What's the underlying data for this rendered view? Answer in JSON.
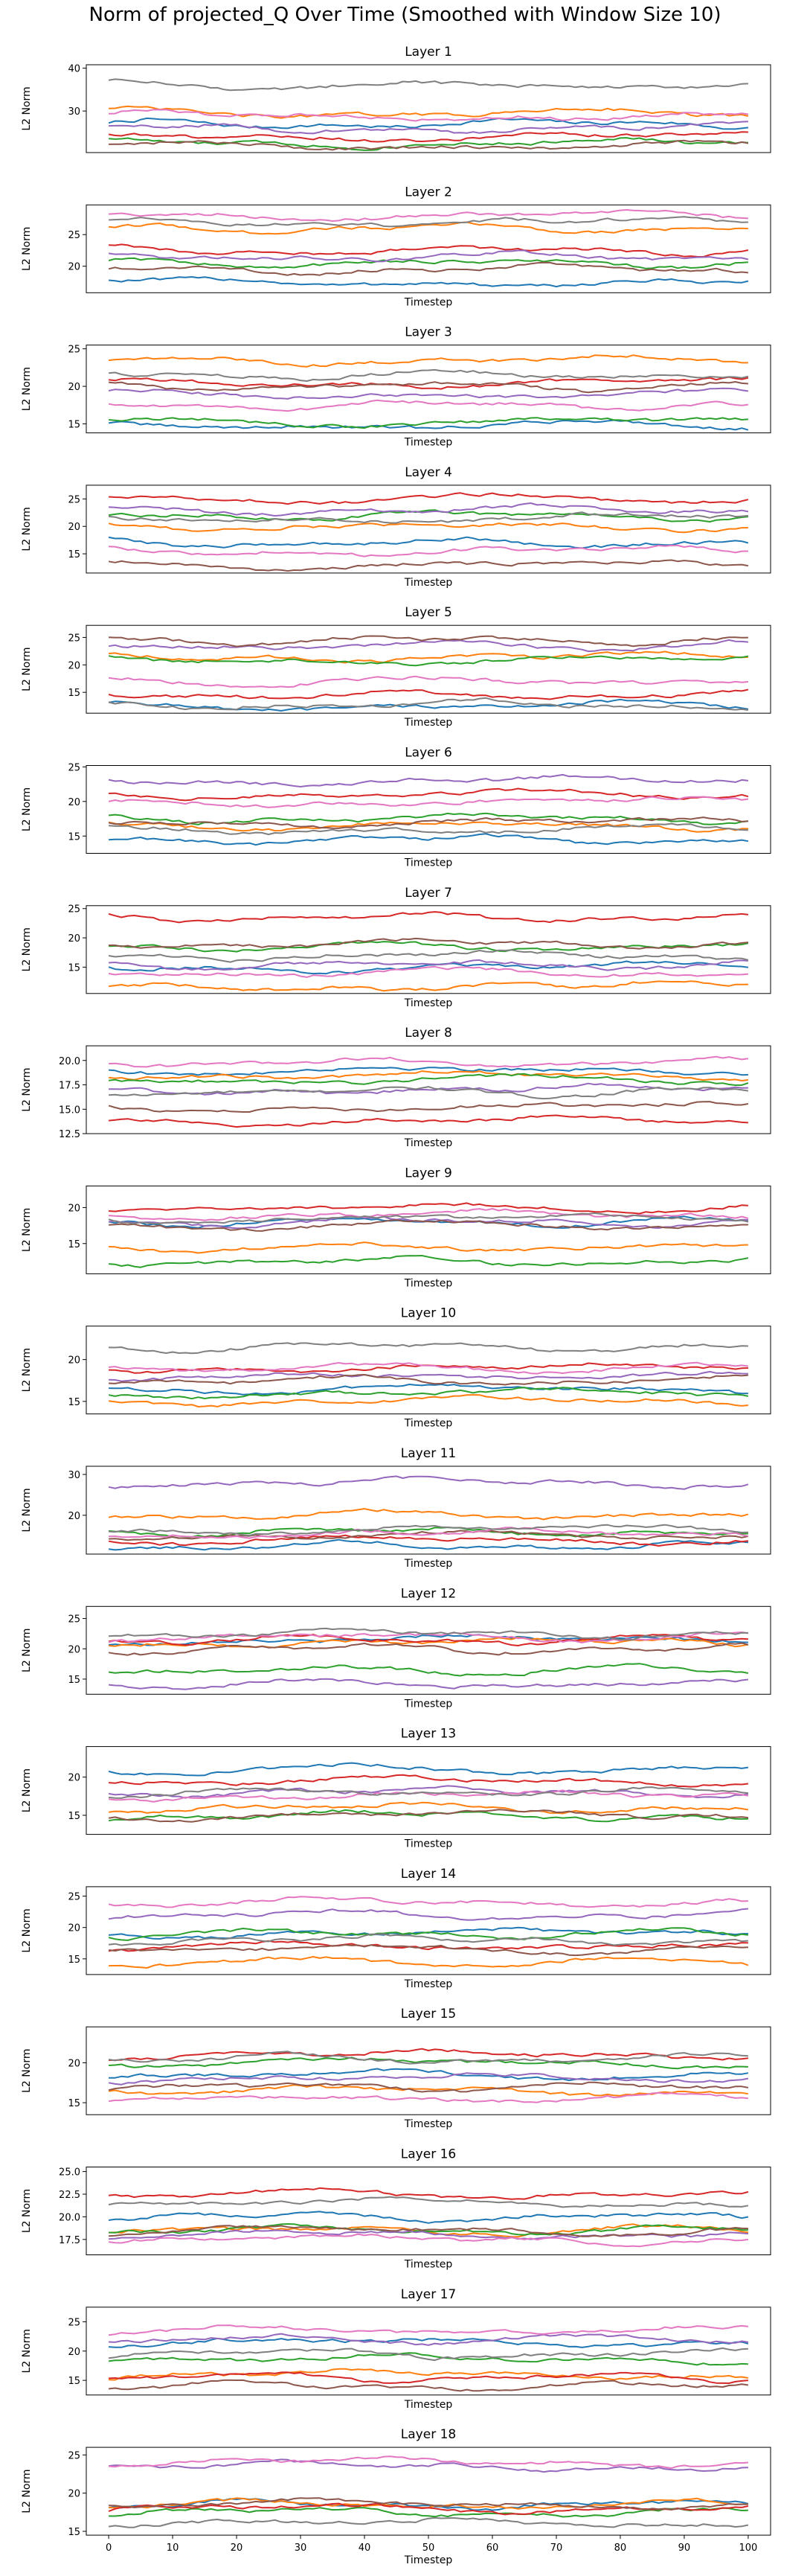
{
  "figure": {
    "title": "Norm of projected_Q Over Time (Smoothed with Window Size 10)"
  },
  "colors": [
    "#1f77b4",
    "#ff7f0e",
    "#2ca02c",
    "#d62728",
    "#9467bd",
    "#8c564b",
    "#e377c2",
    "#7f7f7f"
  ],
  "chart_data": [
    {
      "type": "line",
      "title": "Layer 1",
      "xlabel": "",
      "ylabel": "L2 Norm",
      "xlim": [
        -3.5,
        103.5
      ],
      "ylim": [
        20.3,
        40.8
      ],
      "yticks": [
        30,
        40
      ],
      "xticks": [],
      "series": [
        {
          "base": 27
        },
        {
          "base": 29.5
        },
        {
          "base": 22.5
        },
        {
          "base": 24
        },
        {
          "base": 26
        },
        {
          "base": 22
        },
        {
          "base": 29
        },
        {
          "base": 36
        }
      ]
    },
    {
      "type": "line",
      "title": "Layer 2",
      "xlabel": "Timestep",
      "ylabel": "L2 Norm",
      "xlim": [
        -3.5,
        103.5
      ],
      "ylim": [
        15.8,
        29.7
      ],
      "yticks": [
        20,
        25
      ],
      "xticks": [],
      "series": [
        {
          "base": 17.5
        },
        {
          "base": 26
        },
        {
          "base": 20.5
        },
        {
          "base": 22.5
        },
        {
          "base": 21.5
        },
        {
          "base": 19.5
        },
        {
          "base": 28
        },
        {
          "base": 27
        }
      ]
    },
    {
      "type": "line",
      "title": "Layer 3",
      "xlabel": "Timestep",
      "ylabel": "L2 Norm",
      "xlim": [
        -3.5,
        103.5
      ],
      "ylim": [
        13.8,
        25.5
      ],
      "yticks": [
        15,
        20,
        25
      ],
      "xticks": [],
      "series": [
        {
          "base": 14.8
        },
        {
          "base": 23.5
        },
        {
          "base": 15.3
        },
        {
          "base": 20.5
        },
        {
          "base": 19
        },
        {
          "base": 20
        },
        {
          "base": 17.5
        },
        {
          "base": 21.5
        }
      ]
    },
    {
      "type": "line",
      "title": "Layer 4",
      "xlabel": "Timestep",
      "ylabel": "L2 Norm",
      "xlim": [
        -3.5,
        103.5
      ],
      "ylim": [
        11.5,
        27.5
      ],
      "yticks": [
        15,
        20,
        25
      ],
      "xticks": [],
      "series": [
        {
          "base": 17
        },
        {
          "base": 20
        },
        {
          "base": 22
        },
        {
          "base": 25
        },
        {
          "base": 23
        },
        {
          "base": 13
        },
        {
          "base": 15.5
        },
        {
          "base": 21.5
        }
      ]
    },
    {
      "type": "line",
      "title": "Layer 5",
      "xlabel": "Timestep",
      "ylabel": "L2 Norm",
      "xlim": [
        -3.5,
        103.5
      ],
      "ylim": [
        11.2,
        27.2
      ],
      "yticks": [
        15,
        20,
        25
      ],
      "xticks": [],
      "series": [
        {
          "base": 12.5
        },
        {
          "base": 21.5
        },
        {
          "base": 21
        },
        {
          "base": 14.5
        },
        {
          "base": 23.5
        },
        {
          "base": 24.5
        },
        {
          "base": 17
        },
        {
          "base": 12.8
        }
      ]
    },
    {
      "type": "line",
      "title": "Layer 6",
      "xlabel": "Timestep",
      "ylabel": "L2 Norm",
      "xlim": [
        -3.5,
        103.5
      ],
      "ylim": [
        12.5,
        25.2
      ],
      "yticks": [
        15,
        20,
        25
      ],
      "xticks": [],
      "series": [
        {
          "base": 14.5
        },
        {
          "base": 16.5
        },
        {
          "base": 17.5
        },
        {
          "base": 21
        },
        {
          "base": 23
        },
        {
          "base": 17
        },
        {
          "base": 20
        },
        {
          "base": 16
        }
      ]
    },
    {
      "type": "line",
      "title": "Layer 7",
      "xlabel": "Timestep",
      "ylabel": "L2 Norm",
      "xlim": [
        -3.5,
        103.5
      ],
      "ylim": [
        10.5,
        25.5
      ],
      "yticks": [
        15,
        20,
        25
      ],
      "xticks": [],
      "series": [
        {
          "base": 15
        },
        {
          "base": 11.8
        },
        {
          "base": 18.5
        },
        {
          "base": 23.5
        },
        {
          "base": 15.5
        },
        {
          "base": 19
        },
        {
          "base": 14
        },
        {
          "base": 17
        }
      ]
    },
    {
      "type": "line",
      "title": "Layer 8",
      "xlabel": "Timestep",
      "ylabel": "L2 Norm",
      "xlim": [
        -3.5,
        103.5
      ],
      "ylim": [
        12.5,
        21.5
      ],
      "yticks": [
        12.5,
        15.0,
        17.5,
        20.0
      ],
      "xticks": [],
      "series": [
        {
          "base": 19
        },
        {
          "base": 18.5
        },
        {
          "base": 18
        },
        {
          "base": 13.8
        },
        {
          "base": 17
        },
        {
          "base": 15.2
        },
        {
          "base": 19.8
        },
        {
          "base": 16.8
        }
      ]
    },
    {
      "type": "line",
      "title": "Layer 9",
      "xlabel": "Timestep",
      "ylabel": "L2 Norm",
      "xlim": [
        -3.5,
        103.5
      ],
      "ylim": [
        10.8,
        23
      ],
      "yticks": [
        15,
        20
      ],
      "xticks": [],
      "series": [
        {
          "base": 18
        },
        {
          "base": 14.5
        },
        {
          "base": 12.5
        },
        {
          "base": 20
        },
        {
          "base": 18
        },
        {
          "base": 17.5
        },
        {
          "base": 19
        },
        {
          "base": 18.5
        }
      ]
    },
    {
      "type": "line",
      "title": "Layer 10",
      "xlabel": "Timestep",
      "ylabel": "L2 Norm",
      "xlim": [
        -3.5,
        103.5
      ],
      "ylim": [
        13.5,
        24
      ],
      "yticks": [
        15,
        20
      ],
      "xticks": [],
      "series": [
        {
          "base": 16.5
        },
        {
          "base": 15
        },
        {
          "base": 16
        },
        {
          "base": 19
        },
        {
          "base": 18
        },
        {
          "base": 17.5
        },
        {
          "base": 19
        },
        {
          "base": 21.5
        }
      ]
    },
    {
      "type": "line",
      "title": "Layer 11",
      "xlabel": "Timestep",
      "ylabel": "L2 Norm",
      "xlim": [
        -3.5,
        103.5
      ],
      "ylim": [
        10.5,
        32
      ],
      "yticks": [
        20,
        30
      ],
      "xticks": [],
      "series": [
        {
          "base": 12.5
        },
        {
          "base": 20
        },
        {
          "base": 16
        },
        {
          "base": 14
        },
        {
          "base": 28
        },
        {
          "base": 15
        },
        {
          "base": 15.5
        },
        {
          "base": 16.5
        }
      ]
    },
    {
      "type": "line",
      "title": "Layer 12",
      "xlabel": "Timestep",
      "ylabel": "L2 Norm",
      "xlim": [
        -3.5,
        103.5
      ],
      "ylim": [
        12.5,
        27
      ],
      "yticks": [
        15,
        20,
        25
      ],
      "xticks": [],
      "series": [
        {
          "base": 21.5
        },
        {
          "base": 21
        },
        {
          "base": 16.5
        },
        {
          "base": 21.5
        },
        {
          "base": 14.2
        },
        {
          "base": 20
        },
        {
          "base": 22
        },
        {
          "base": 22.5
        }
      ]
    },
    {
      "type": "line",
      "title": "Layer 13",
      "xlabel": "Timestep",
      "ylabel": "L2 Norm",
      "xlim": [
        -3.5,
        103.5
      ],
      "ylim": [
        12.5,
        24
      ],
      "yticks": [
        15,
        20
      ],
      "xticks": [],
      "series": [
        {
          "base": 21
        },
        {
          "base": 16
        },
        {
          "base": 15
        },
        {
          "base": 19.5
        },
        {
          "base": 18
        },
        {
          "base": 15
        },
        {
          "base": 17.5
        },
        {
          "base": 18
        }
      ]
    },
    {
      "type": "line",
      "title": "Layer 14",
      "xlabel": "Timestep",
      "ylabel": "L2 Norm",
      "xlim": [
        -3.5,
        103.5
      ],
      "ylim": [
        12.5,
        26.5
      ],
      "yticks": [
        15,
        20,
        25
      ],
      "xticks": [],
      "series": [
        {
          "base": 19
        },
        {
          "base": 14.5
        },
        {
          "base": 19
        },
        {
          "base": 17
        },
        {
          "base": 22
        },
        {
          "base": 16.5
        },
        {
          "base": 24
        },
        {
          "base": 18
        }
      ]
    },
    {
      "type": "line",
      "title": "Layer 15",
      "xlabel": "Timestep",
      "ylabel": "L2 Norm",
      "xlim": [
        -3.5,
        103.5
      ],
      "ylim": [
        13.5,
        24.5
      ],
      "yticks": [
        15,
        20
      ],
      "xticks": [],
      "series": [
        {
          "base": 18.5
        },
        {
          "base": 16.5
        },
        {
          "base": 20
        },
        {
          "base": 21
        },
        {
          "base": 18
        },
        {
          "base": 17
        },
        {
          "base": 15.5
        },
        {
          "base": 20.5
        }
      ]
    },
    {
      "type": "line",
      "title": "Layer 16",
      "xlabel": "Timestep",
      "ylabel": "L2 Norm",
      "xlim": [
        -3.5,
        103.5
      ],
      "ylim": [
        15.8,
        25.5
      ],
      "yticks": [
        17.5,
        20.0,
        22.5,
        25.0
      ],
      "xticks": [],
      "series": [
        {
          "base": 20
        },
        {
          "base": 18.5
        },
        {
          "base": 18.5
        },
        {
          "base": 22.5
        },
        {
          "base": 18
        },
        {
          "base": 18.5
        },
        {
          "base": 17.5
        },
        {
          "base": 21.5
        }
      ]
    },
    {
      "type": "line",
      "title": "Layer 17",
      "xlabel": "Timestep",
      "ylabel": "L2 Norm",
      "xlim": [
        -3.5,
        103.5
      ],
      "ylim": [
        12.5,
        27.5
      ],
      "yticks": [
        15,
        20,
        25
      ],
      "xticks": [],
      "series": [
        {
          "base": 21.5
        },
        {
          "base": 16
        },
        {
          "base": 18.5
        },
        {
          "base": 15.5
        },
        {
          "base": 22
        },
        {
          "base": 14
        },
        {
          "base": 23.5
        },
        {
          "base": 19.5
        }
      ]
    },
    {
      "type": "line",
      "title": "Layer 18",
      "xlabel": "Timestep",
      "ylabel": "L2 Norm",
      "xlim": [
        -3.5,
        103.5
      ],
      "ylim": [
        14.5,
        26
      ],
      "yticks": [
        15,
        20,
        25
      ],
      "xticks": [
        0,
        10,
        20,
        30,
        40,
        50,
        60,
        70,
        80,
        90,
        100
      ],
      "series": [
        {
          "base": 18.5
        },
        {
          "base": 18.5
        },
        {
          "base": 17.5
        },
        {
          "base": 18
        },
        {
          "base": 23.5
        },
        {
          "base": 18.5
        },
        {
          "base": 24
        },
        {
          "base": 16
        }
      ]
    }
  ]
}
